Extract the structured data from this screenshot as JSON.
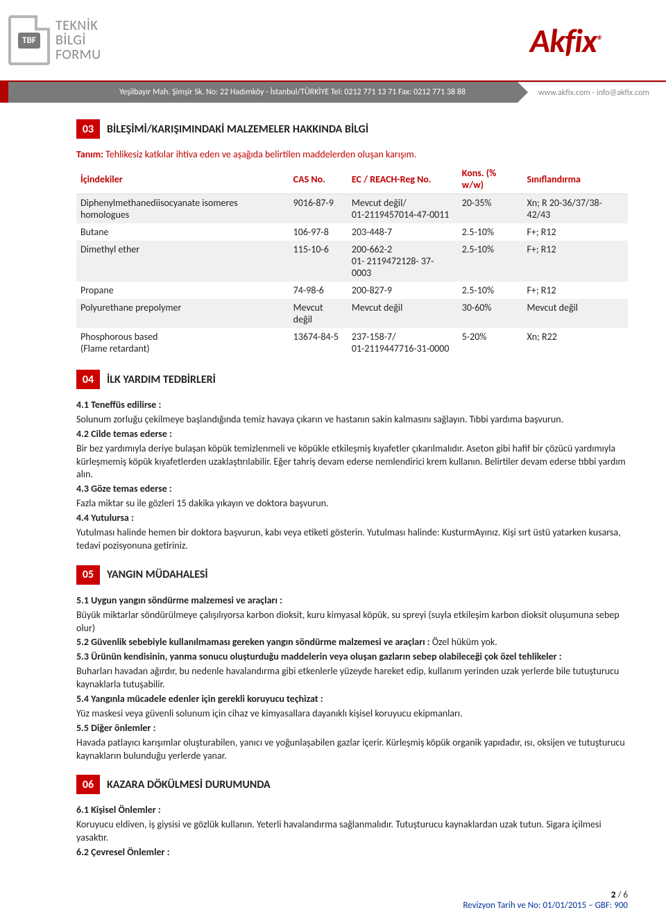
{
  "header": {
    "tbf_badge": "TBF",
    "tbf_line1": "TEKNİK",
    "tbf_line2": "BİLGİ",
    "tbf_line3": "FORMU",
    "akfix": "Akfix",
    "address_left": "Yeşilbayır Mah. Şimşir Sk. No: 22 Hadımköy - İstanbul/TÜRKİYE  Tel: 0212 771 13 71  Fax: 0212 771 38 88",
    "address_right": "www.akfix.com - info@akfix.com"
  },
  "section03": {
    "num": "03",
    "title": "BİLEŞİMİ/KARIŞIMINDAKİ MALZEMELER HAKKINDA BİLGİ",
    "definition_label": "Tanım:",
    "definition_text": "Tehlikesiz katkılar ihtiva eden ve aşağıda belirtilen maddelerden oluşan karışım.",
    "columns": [
      "İçindekiler",
      "CAS No.",
      "EC / REACH-Reg No.",
      "Kons. (% w/w)",
      "Sınıflandırma"
    ],
    "rows": [
      {
        "shade": true,
        "c": [
          "Diphenylmethanediisocyanate isomeres homologues",
          "9016-87-9",
          "Mevcut değil/\n01-2119457014-47-0011",
          "20-35%",
          "Xn; R 20-36/37/38-42/43"
        ]
      },
      {
        "shade": false,
        "c": [
          "Butane",
          "106-97-8",
          "203-448-7",
          "2.5-10%",
          "F+; R12"
        ]
      },
      {
        "shade": true,
        "c": [
          "Dimethyl ether",
          "115-10-6",
          "200-662-2\n01- 2119472128- 37- 0003",
          "2.5-10%",
          "F+; R12"
        ]
      },
      {
        "shade": false,
        "c": [
          "Propane",
          "74-98-6",
          "200-827-9",
          "2.5-10%",
          "F+; R12"
        ]
      },
      {
        "shade": true,
        "c": [
          "Polyurethane prepolymer",
          "Mevcut değil",
          "Mevcut değil",
          "30-60%",
          "Mevcut değil"
        ]
      },
      {
        "shade": false,
        "c": [
          "Phosphorous based\n(Flame retardant)",
          "13674-84-5",
          "237-158-7/\n01-2119447716-31-0000",
          "5-20%",
          "Xn; R22"
        ]
      }
    ]
  },
  "section04": {
    "num": "04",
    "title": "İLK YARDIM TEDBİRLERİ",
    "items": [
      {
        "h": "4.1 Teneffüs edilirse :",
        "t": "Solunum zorluğu çekilmeye başlandığında temiz havaya çıkarın ve hastanın sakin kalmasını sağlayın. Tıbbi yardıma başvurun."
      },
      {
        "h": "4.2 Cilde temas ederse :",
        "t": "Bir bez yardımıyla deriye bulaşan köpük temizlenmeli ve köpükle etkileşmiş kıyafetler çıkarılmalıdır. Aseton gibi hafif bir çözücü yardımıyla kürleşmemiş köpük kıyafetlerden uzaklaştırılabilir. Eğer tahriş devam ederse nemlendirici krem kullanın. Belirtiler devam ederse tıbbi yardım alın."
      },
      {
        "h": "4.3 Göze temas ederse :",
        "t": "Fazla miktar su ile gözleri 15 dakika yıkayın ve doktora başvurun."
      },
      {
        "h": "4.4 Yutulursa :",
        "t": "Yutulması halinde hemen bir doktora başvurun, kabı veya etiketi gösterin. Yutulması halinde: KusturmAyınız. Kişi sırt üstü yatarken kusarsa, tedavi pozisyonuna getiriniz."
      }
    ]
  },
  "section05": {
    "num": "05",
    "title": "YANGIN MÜDAHALESİ",
    "items": [
      {
        "h": "5.1 Uygun yangın söndürme malzemesi ve araçları :",
        "t": "Büyük miktarlar söndürülmeye çalışılıyorsa karbon dioksit, kuru kimyasal köpük, su spreyi (suyla etkileşim karbon dioksit oluşumuna sebep olur)"
      },
      {
        "h": "5.2 Güvenlik sebebiyle kullanılmaması gereken yangın söndürme malzemesi ve araçları :",
        "t": "Özel hüküm yok."
      },
      {
        "h": "5.3 Ürünün kendisinin, yanma sonucu oluşturduğu maddelerin veya oluşan gazların sebep olabileceği çok özel tehlikeler :",
        "t": "Buharları havadan ağırdır, bu nedenle havalandırma gibi etkenlerle yüzeyde hareket edip, kullanım yerinden uzak yerlerde bile tutuşturucu kaynaklarla tutuşabilir."
      },
      {
        "h": "5.4 Yangınla mücadele edenler için gerekli koruyucu teçhizat :",
        "t": "Yüz maskesi veya güvenli solunum için cihaz ve kimyasallara dayanıklı kişisel koruyucu ekipmanları."
      },
      {
        "h": "5.5 Diğer önlemler :",
        "t": "Havada patlayıcı karışımlar oluşturabilen, yanıcı ve yoğunlaşabilen gazlar içerir. Kürleşmiş köpük organik yapıdadır, ısı, oksijen  ve tutuşturucu kaynakların bulunduğu yerlerde yanar."
      }
    ]
  },
  "section06": {
    "num": "06",
    "title": "KAZARA DÖKÜLMESİ DURUMUNDA",
    "items": [
      {
        "h": "6.1 Kişisel Önlemler :",
        "t": "Koruyucu eldiven, iş giysisi ve gözlük kullanın. Yeterli havalandırma sağlanmalıdır. Tutuşturucu kaynaklardan uzak tutun. Sigara içilmesi yasaktır."
      },
      {
        "h": "6.2 Çevresel Önlemler :",
        "t": ""
      }
    ]
  },
  "footer": {
    "page_current": "2",
    "page_sep": " / ",
    "page_total": "6",
    "revision": "Revizyon Tarih ve No: 01/01/2015 – GBF: 900"
  },
  "colors": {
    "brand_red": "#b00000",
    "section_red": "#cc0000",
    "def_red": "#c00000",
    "grey": "#7a7a7a",
    "shade": "#eef0f2",
    "blue": "#003399"
  }
}
